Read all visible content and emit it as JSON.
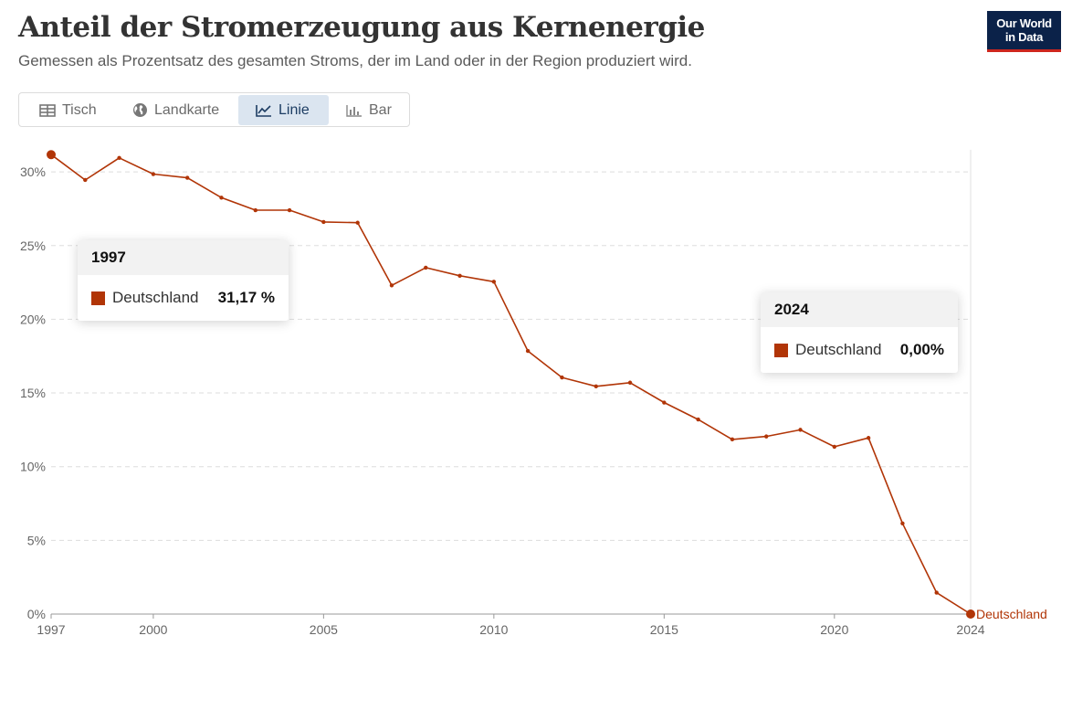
{
  "header": {
    "title": "Anteil der Stromerzeugung aus Kernenergie",
    "subtitle": "Gemessen als Prozentsatz des gesamten Stroms, der im Land oder in der Region produziert wird.",
    "logo_line1": "Our World",
    "logo_line2": "in Data"
  },
  "tabs": [
    {
      "label": "Tisch",
      "icon": "table-icon"
    },
    {
      "label": "Landkarte",
      "icon": "globe-icon"
    },
    {
      "label": "Linie",
      "icon": "line-chart-icon",
      "active": true
    },
    {
      "label": "Bar",
      "icon": "bar-chart-icon"
    }
  ],
  "tooltips": [
    {
      "year": "1997",
      "name": "Deutschland",
      "value": "31,17 %"
    },
    {
      "year": "2024",
      "name": "Deutschland",
      "value": "0,00%"
    }
  ],
  "chart_data": {
    "type": "line",
    "x": [
      1997,
      1998,
      1999,
      2000,
      2001,
      2002,
      2003,
      2004,
      2005,
      2006,
      2007,
      2008,
      2009,
      2010,
      2011,
      2012,
      2013,
      2014,
      2015,
      2016,
      2017,
      2018,
      2019,
      2020,
      2021,
      2022,
      2023,
      2024
    ],
    "series": [
      {
        "name": "Deutschland",
        "color": "#b13507",
        "values": [
          31.17,
          29.45,
          30.95,
          29.85,
          29.6,
          28.25,
          27.4,
          27.4,
          26.6,
          26.55,
          22.3,
          23.5,
          22.95,
          22.55,
          17.85,
          16.05,
          15.45,
          15.7,
          14.35,
          13.2,
          11.85,
          12.05,
          12.5,
          11.35,
          11.95,
          6.15,
          1.45,
          0.0
        ]
      }
    ],
    "ylim": [
      0,
      31.5
    ],
    "yticks": [
      0,
      5,
      10,
      15,
      20,
      25,
      30
    ],
    "ytick_labels": [
      "0%",
      "5%",
      "10%",
      "15%",
      "20%",
      "25%",
      "30%"
    ],
    "xticks": [
      1997,
      2000,
      2005,
      2010,
      2015,
      2020,
      2024
    ],
    "xtick_labels": [
      "1997",
      "2000",
      "2005",
      "2010",
      "2015",
      "2020",
      "2024"
    ],
    "end_label": "Deutschland",
    "grid": true
  }
}
